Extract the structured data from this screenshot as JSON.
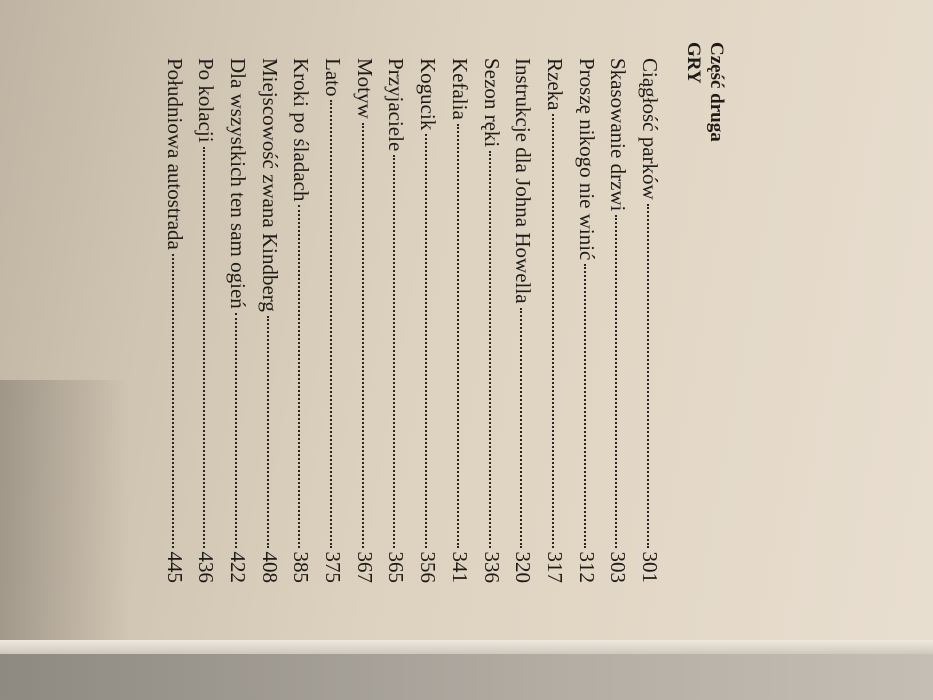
{
  "section": {
    "part": "Część druga",
    "title": "GRY"
  },
  "entries": [
    {
      "title": "Ciągłość parków",
      "page": "301"
    },
    {
      "title": "Skasowanie drzwi",
      "page": "303"
    },
    {
      "title": "Proszę nikogo nie winić",
      "page": "312"
    },
    {
      "title": "Rzeka",
      "page": "317"
    },
    {
      "title": "Instrukcje dla Johna Howella",
      "page": "320"
    },
    {
      "title": "Sezon ręki",
      "page": "336"
    },
    {
      "title": "Kefalia",
      "page": "341"
    },
    {
      "title": "Kogucik",
      "page": "356"
    },
    {
      "title": "Przyjaciele",
      "page": "365"
    },
    {
      "title": "Motyw",
      "page": "367"
    },
    {
      "title": "Lato",
      "page": "375"
    },
    {
      "title": "Kroki po śladach",
      "page": "385"
    },
    {
      "title": "Miejscowość zwana Kindberg",
      "page": "408"
    },
    {
      "title": "Dla wszystkich ten sam ogień",
      "page": "422"
    },
    {
      "title": "Po kolacji",
      "page": "436"
    },
    {
      "title": "Południowa autostrada",
      "page": "445"
    }
  ]
}
